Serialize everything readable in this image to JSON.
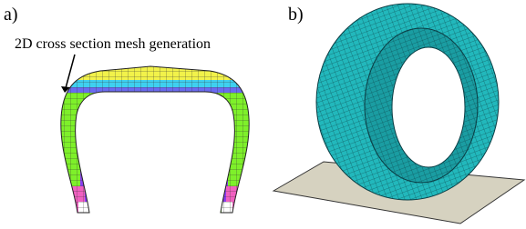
{
  "panels": [
    {
      "label": "a)",
      "annotation": "2D cross section mesh generation"
    },
    {
      "label": "b)"
    }
  ]
}
